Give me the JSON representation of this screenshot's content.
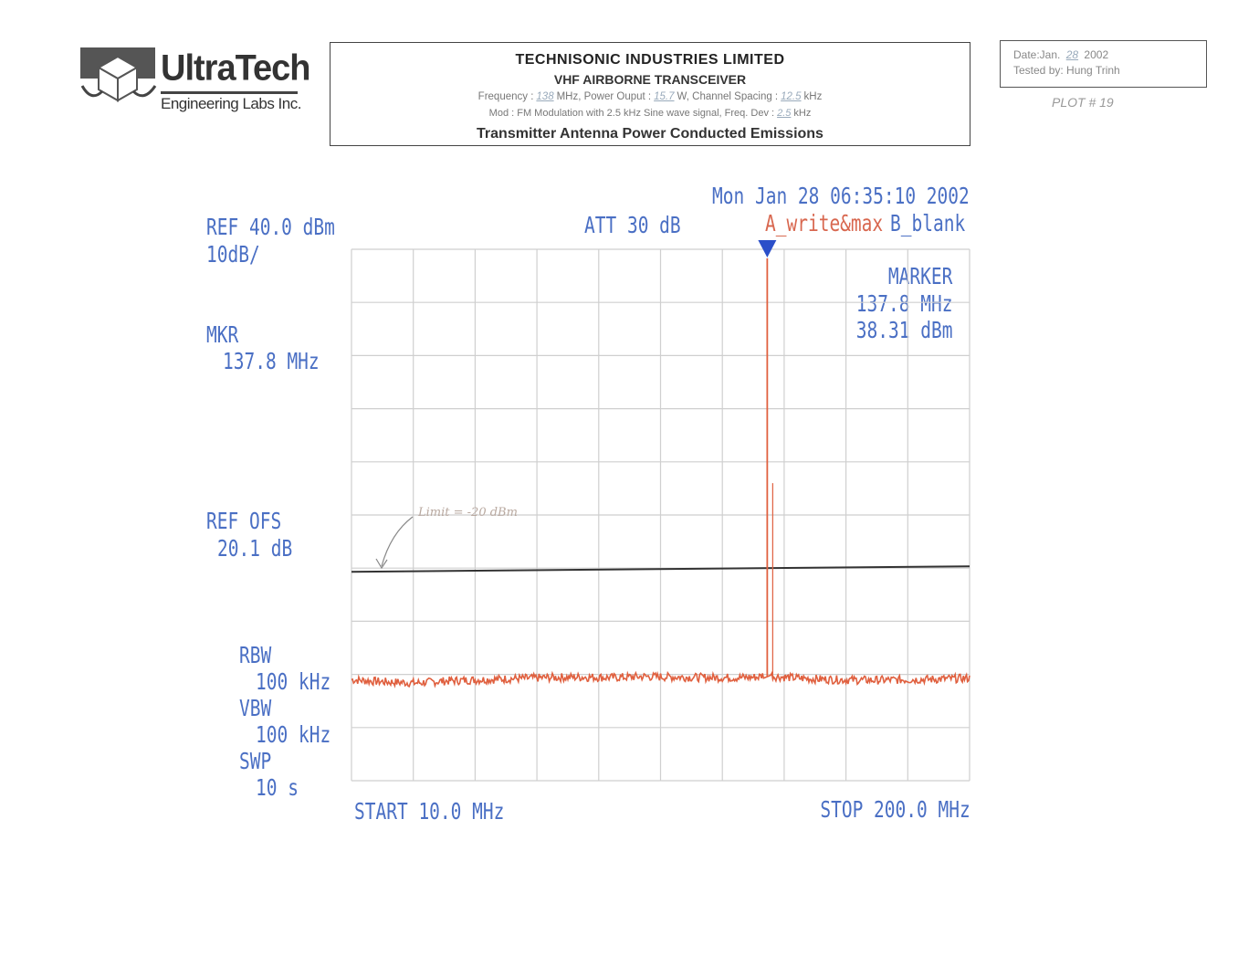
{
  "header": {
    "logo_name": "UltraTech",
    "logo_sub": "Engineering Labs Inc.",
    "company": "TECHNISONIC INDUSTRIES LIMITED",
    "product": "VHF AIRBORNE TRANSCEIVER",
    "frequency_label": "Frequency :",
    "frequency_value": "138",
    "frequency_unit": "MHz, Power Ouput :",
    "power_value": "15.7",
    "power_unit": "W, Channel Spacing :",
    "spacing_value": "12.5",
    "spacing_unit": "kHz",
    "mod_text": "Mod : FM Modulation with 2.5 kHz Sine wave signal, Freq. Dev :",
    "dev_value": "2.5",
    "dev_unit": "kHz",
    "test_title": "Transmitter Antenna Power Conducted Emissions"
  },
  "test_info": {
    "date_label": "Date:Jan.",
    "date_day": "28",
    "date_year": "2002",
    "tested_by": "Tested by: Hung Trinh",
    "plot_number": "PLOT # 19"
  },
  "analyzer": {
    "timestamp": "Mon Jan 28 06:35:10 2002",
    "ref_level": "REF 40.0 dBm",
    "scale": "10dB/",
    "attenuation": "ATT 30 dB",
    "trace_a": "A_write&max",
    "trace_b": "B_blank",
    "marker_title": "MARKER",
    "marker_freq": "137.8 MHz",
    "marker_level": "38.31 dBm",
    "mkr_label": "MKR",
    "mkr_freq": "137.8 MHz",
    "ref_ofs_label": "REF OFS",
    "ref_ofs_value": "20.1 dB",
    "rbw_label": "RBW",
    "rbw_value": "100 kHz",
    "vbw_label": "VBW",
    "vbw_value": "100 kHz",
    "swp_label": "SWP",
    "swp_value": "10 s",
    "start": "START 10.0 MHz",
    "stop": "STOP 200.0 MHz",
    "limit_annotation": "Limit = -20 dBm"
  },
  "chart_data": {
    "type": "line",
    "x_unit": "MHz",
    "y_unit": "dBm",
    "xlim": [
      10.0,
      200.0
    ],
    "ylim": [
      -60.0,
      40.0
    ],
    "grid": true,
    "x_divisions": 10,
    "y_divisions": 10,
    "limit_line": {
      "y": -20
    },
    "marker": {
      "x": 137.8,
      "y": 38.31
    },
    "series": [
      {
        "color": "#e0603f",
        "x": [
          10,
          20,
          30,
          40,
          50,
          60,
          70,
          80,
          90,
          100,
          110,
          120,
          130,
          135,
          137,
          137.8,
          138.6,
          140,
          150,
          160,
          170,
          180,
          190,
          200
        ],
        "y": [
          -41,
          -41.4,
          -41.6,
          -41.2,
          -41.0,
          -40.8,
          -40.6,
          -40.5,
          -40.6,
          -40.4,
          -40.5,
          -40.6,
          -40.6,
          -40.5,
          -40.0,
          38.31,
          -40.0,
          -40.4,
          -40.8,
          -41.0,
          -41.1,
          -41.0,
          -40.9,
          -40.7
        ]
      }
    ]
  }
}
